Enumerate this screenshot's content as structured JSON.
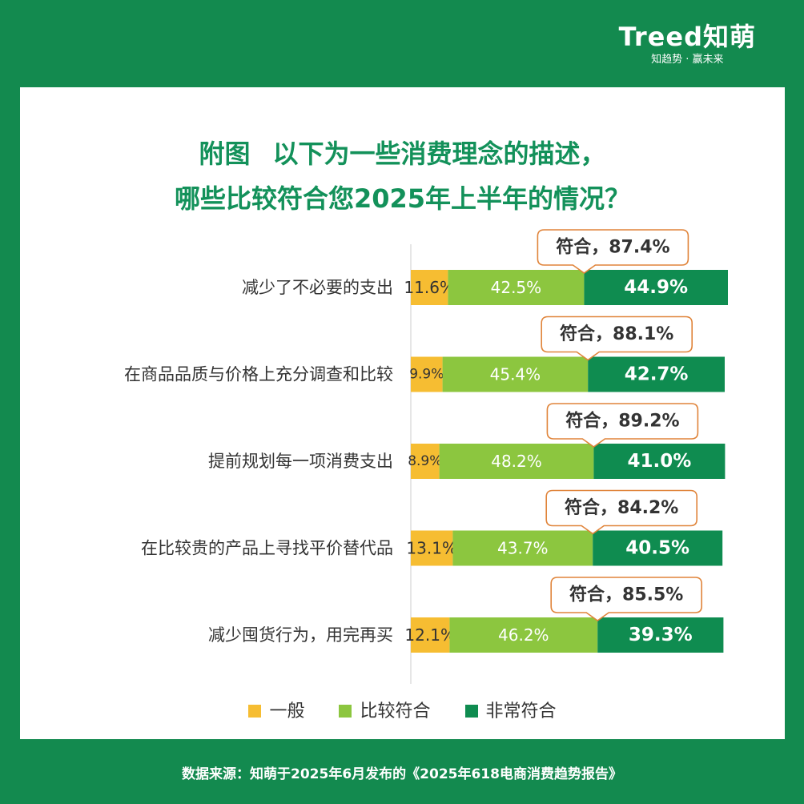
{
  "brand": {
    "logo": "Treed知萌",
    "slogan": "知趋势 · 赢未来"
  },
  "title": {
    "line1_a": "附图",
    "line1_b": "以下为一些消费理念的描述，",
    "line2": "哪些比较符合您2025年上半年的情况？"
  },
  "footer": "数据来源：知萌于2025年6月发布的《2025年618电商消费趋势报告》",
  "colors": {
    "general": "#f6bd32",
    "fairly": "#8cc63f",
    "very": "#0f8c50",
    "callout_border": "#e0843a",
    "brand_green": "#138a4f"
  },
  "chart_data": {
    "type": "bar",
    "orientation": "horizontal",
    "stacked": true,
    "categories": [
      "减少了不必要的支出",
      "在商品品质与价格上充分调查和比较",
      "提前规划每一项消费支出",
      "在比较贵的产品上寻找平价替代品",
      "减少囤货行为，用完再买"
    ],
    "series": [
      {
        "name": "一般",
        "values": [
          11.6,
          9.9,
          8.9,
          13.1,
          12.1
        ],
        "labels": [
          "11.6%",
          "9.9%",
          "8.9%",
          "13.1%",
          "12.1%"
        ]
      },
      {
        "name": "比较符合",
        "values": [
          42.5,
          45.4,
          48.2,
          43.7,
          46.2
        ],
        "labels": [
          "42.5%",
          "45.4%",
          "48.2%",
          "43.7%",
          "46.2%"
        ]
      },
      {
        "name": "非常符合",
        "values": [
          44.9,
          42.7,
          41.0,
          40.5,
          39.3
        ],
        "labels": [
          "44.9%",
          "42.7%",
          "41.0%",
          "40.5%",
          "39.3%"
        ]
      }
    ],
    "callouts": [
      "符合，87.4%",
      "符合，88.1%",
      "符合，89.2%",
      "符合，84.2%",
      "符合，85.5%"
    ],
    "xlim": [
      0,
      100
    ],
    "legend": "bottom",
    "grid": false
  }
}
